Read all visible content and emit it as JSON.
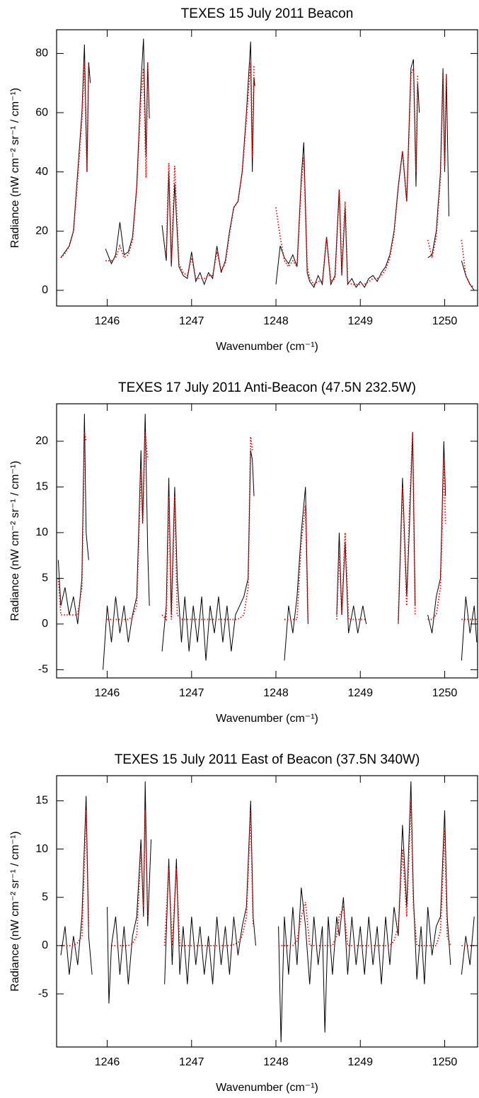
{
  "chart_data": [
    {
      "type": "line",
      "title": "TEXES 15 July 2011 Beacon",
      "x_label": "Wavenumber (cm⁻¹)",
      "y_label": "Radiance (nW cm⁻² sr⁻¹ / cm⁻¹)",
      "xlim": [
        1245.4,
        1250.39
      ],
      "xticks": [
        1246,
        1247,
        1248,
        1249,
        1250
      ],
      "ylim": [
        -5.3,
        88
      ],
      "yticks": [
        0,
        20,
        40,
        60,
        80
      ],
      "x": [
        1245.45,
        1245.5,
        1245.55,
        1245.6,
        1245.65,
        1245.7,
        1245.73,
        1245.76,
        1245.78,
        1245.8,
        1245.9,
        1245.98,
        1246.05,
        1246.1,
        1246.15,
        1246.2,
        1246.25,
        1246.3,
        1246.35,
        1246.4,
        1246.43,
        1246.46,
        1246.48,
        1246.5,
        1246.58,
        1246.65,
        1246.7,
        1246.73,
        1246.76,
        1246.8,
        1246.85,
        1246.9,
        1246.95,
        1247.0,
        1247.05,
        1247.1,
        1247.15,
        1247.2,
        1247.25,
        1247.3,
        1247.35,
        1247.4,
        1247.45,
        1247.5,
        1247.55,
        1247.6,
        1247.65,
        1247.7,
        1247.72,
        1247.74,
        1247.75,
        1247.9,
        1248.0,
        1248.05,
        1248.1,
        1248.15,
        1248.2,
        1248.25,
        1248.3,
        1248.33,
        1248.37,
        1248.4,
        1248.45,
        1248.5,
        1248.55,
        1248.6,
        1248.65,
        1248.7,
        1248.75,
        1248.78,
        1248.82,
        1248.85,
        1248.9,
        1248.95,
        1249.0,
        1249.05,
        1249.1,
        1249.15,
        1249.2,
        1249.25,
        1249.3,
        1249.35,
        1249.4,
        1249.45,
        1249.5,
        1249.55,
        1249.6,
        1249.63,
        1249.66,
        1249.68,
        1249.7,
        1249.75,
        1249.8,
        1249.85,
        1249.9,
        1249.95,
        1249.98,
        1250.0,
        1250.02,
        1250.05,
        1250.12,
        1250.2,
        1250.25,
        1250.3,
        1250.35
      ],
      "series": [
        {
          "color": "#000000",
          "dash": false,
          "values": [
            11,
            13,
            15,
            20,
            40,
            60,
            83,
            40,
            77,
            70,
            null,
            14,
            9,
            12,
            23,
            12,
            13,
            18,
            35,
            70,
            85,
            45,
            77,
            58,
            null,
            22,
            10,
            40,
            8,
            36,
            8,
            5,
            4,
            13,
            3,
            6,
            2,
            6,
            4,
            15,
            6,
            10,
            20,
            28,
            30,
            40,
            60,
            84,
            40,
            72,
            69,
            null,
            2,
            15,
            11,
            9,
            12,
            8,
            38,
            50,
            6,
            3,
            1,
            5,
            2,
            18,
            2,
            5,
            34,
            5,
            28,
            2,
            4,
            1,
            3,
            1,
            4,
            5,
            3,
            6,
            8,
            12,
            20,
            35,
            47,
            30,
            75,
            78,
            35,
            70,
            60,
            null,
            11,
            12,
            20,
            40,
            75,
            40,
            73,
            25,
            null,
            10,
            5,
            2,
            0
          ]
        },
        {
          "color": "#ff0000",
          "dash": true,
          "values": [
            11,
            12.5,
            15,
            20,
            38,
            58,
            77,
            40,
            77,
            null,
            null,
            10,
            10,
            11,
            15,
            11,
            12,
            17,
            35,
            65,
            75,
            38,
            77,
            null,
            null,
            null,
            12,
            43,
            10,
            42,
            9,
            6,
            5,
            11,
            4,
            4,
            4,
            5,
            5,
            13,
            7,
            9,
            19,
            28,
            30,
            40,
            58,
            77,
            45,
            76,
            null,
            null,
            28,
            18,
            10,
            8,
            10,
            8,
            36,
            45,
            8,
            4,
            2,
            3,
            3,
            18,
            3,
            4,
            34,
            6,
            30,
            3,
            2,
            2,
            2,
            2,
            3,
            4,
            4,
            5,
            7,
            11,
            19,
            35,
            47,
            30,
            73,
            75,
            40,
            73,
            null,
            null,
            17,
            11,
            18,
            38,
            73,
            42,
            73,
            null,
            null,
            17,
            5,
            2,
            1
          ]
        }
      ]
    },
    {
      "type": "line",
      "title": "TEXES 17 July 2011 Anti-Beacon (47.5N 232.5W)",
      "x_label": "Wavenumber (cm⁻¹)",
      "y_label": "Radiance (nW cm⁻² sr⁻¹ / cm⁻¹)",
      "xlim": [
        1245.4,
        1250.39
      ],
      "xticks": [
        1246,
        1247,
        1248,
        1249,
        1250
      ],
      "ylim": [
        -5.9,
        24.1
      ],
      "yticks": [
        -5,
        0,
        5,
        10,
        15,
        20
      ],
      "x": [
        1245.42,
        1245.45,
        1245.5,
        1245.55,
        1245.6,
        1245.65,
        1245.7,
        1245.73,
        1245.75,
        1245.78,
        1245.87,
        1245.95,
        1246.0,
        1246.05,
        1246.1,
        1246.15,
        1246.2,
        1246.25,
        1246.3,
        1246.35,
        1246.4,
        1246.42,
        1246.45,
        1246.48,
        1246.5,
        1246.58,
        1246.65,
        1246.7,
        1246.73,
        1246.76,
        1246.8,
        1246.83,
        1246.88,
        1246.92,
        1246.97,
        1247.02,
        1247.07,
        1247.12,
        1247.17,
        1247.22,
        1247.27,
        1247.32,
        1247.37,
        1247.42,
        1247.47,
        1247.52,
        1247.57,
        1247.62,
        1247.67,
        1247.7,
        1247.72,
        1247.74,
        1247.9,
        1248.1,
        1248.15,
        1248.2,
        1248.25,
        1248.3,
        1248.35,
        1248.38,
        1248.55,
        1248.72,
        1248.75,
        1248.78,
        1248.82,
        1248.86,
        1248.92,
        1248.97,
        1249.03,
        1249.07,
        1249.3,
        1249.45,
        1249.5,
        1249.55,
        1249.58,
        1249.62,
        1249.65,
        1249.72,
        1249.8,
        1249.85,
        1249.9,
        1249.95,
        1249.99,
        1250.01,
        1250.1,
        1250.2,
        1250.25,
        1250.3,
        1250.35,
        1250.38
      ],
      "series": [
        {
          "color": "#000000",
          "dash": false,
          "values": [
            7,
            2,
            4,
            1,
            3,
            0,
            5,
            23,
            10,
            7,
            null,
            -5,
            2,
            -2,
            3,
            -1,
            2,
            -2,
            1,
            3,
            19,
            11,
            23,
            8,
            2,
            null,
            -3,
            2,
            16,
            1,
            15,
            5,
            -2,
            3,
            -3,
            2,
            -2,
            3,
            -4,
            2,
            -1,
            3,
            -2,
            2,
            -3,
            1,
            2,
            3,
            5,
            19,
            18,
            14,
            null,
            -4,
            2,
            -1,
            3,
            10,
            15,
            0,
            null,
            1,
            10,
            1,
            9,
            -1,
            2,
            -1,
            2,
            0,
            null,
            0,
            16,
            3,
            10,
            21,
            2,
            null,
            1,
            -1,
            3,
            5,
            20,
            14,
            null,
            -4,
            3,
            -1,
            2,
            -2
          ]
        },
        {
          "color": "#ff0000",
          "dash": true,
          "values": [
            5,
            1,
            1,
            1,
            1,
            1,
            4,
            21,
            20,
            null,
            null,
            null,
            0.5,
            0.5,
            0.5,
            0.5,
            0.5,
            0.5,
            0.8,
            2,
            17,
            11,
            21,
            18,
            null,
            null,
            1,
            0.5,
            14,
            0.5,
            14,
            1,
            0.5,
            0.5,
            0.5,
            0.5,
            0.5,
            0.5,
            0.5,
            0.5,
            0.5,
            0.5,
            0.5,
            0.5,
            0.5,
            0.5,
            0.6,
            1,
            4,
            20.5,
            19,
            null,
            null,
            0.5,
            0.5,
            0.5,
            0.5,
            9,
            13,
            0.5,
            null,
            0.5,
            8,
            1,
            10,
            0.5,
            0.5,
            0.5,
            0.5,
            0.5,
            null,
            0.5,
            15,
            2,
            12,
            21,
            1,
            null,
            0.5,
            0.5,
            1,
            4,
            18,
            11,
            null,
            0.5,
            0.5,
            0.5,
            0.5,
            0.5
          ]
        }
      ]
    },
    {
      "type": "line",
      "title": "TEXES 15 July 2011 East of Beacon (37.5N 340W)",
      "x_label": "Wavenumber (cm⁻¹)",
      "y_label": "Radiance (nW cm⁻² sr⁻¹ / cm⁻¹)",
      "xlim": [
        1245.4,
        1250.39
      ],
      "xticks": [
        1246,
        1247,
        1248,
        1249,
        1250
      ],
      "ylim": [
        -10.5,
        17.6
      ],
      "yticks": [
        -5,
        0,
        5,
        10,
        15
      ],
      "x": [
        1245.45,
        1245.5,
        1245.55,
        1245.6,
        1245.65,
        1245.7,
        1245.75,
        1245.78,
        1245.82,
        1245.9,
        1246.0,
        1246.02,
        1246.05,
        1246.1,
        1246.15,
        1246.2,
        1246.25,
        1246.3,
        1246.35,
        1246.4,
        1246.43,
        1246.45,
        1246.48,
        1246.52,
        1246.6,
        1246.68,
        1246.73,
        1246.77,
        1246.82,
        1246.86,
        1246.9,
        1246.95,
        1247.0,
        1247.05,
        1247.1,
        1247.15,
        1247.2,
        1247.25,
        1247.3,
        1247.35,
        1247.4,
        1247.45,
        1247.5,
        1247.55,
        1247.6,
        1247.65,
        1247.7,
        1247.73,
        1247.76,
        1247.9,
        1248.03,
        1248.06,
        1248.1,
        1248.15,
        1248.2,
        1248.25,
        1248.3,
        1248.35,
        1248.4,
        1248.45,
        1248.5,
        1248.55,
        1248.58,
        1248.62,
        1248.67,
        1248.72,
        1248.75,
        1248.8,
        1248.85,
        1248.9,
        1248.95,
        1249.0,
        1249.05,
        1249.1,
        1249.15,
        1249.2,
        1249.25,
        1249.3,
        1249.35,
        1249.4,
        1249.45,
        1249.5,
        1249.55,
        1249.6,
        1249.63,
        1249.67,
        1249.72,
        1249.76,
        1249.8,
        1249.85,
        1249.9,
        1249.95,
        1250.0,
        1250.03,
        1250.07,
        1250.15,
        1250.2,
        1250.25,
        1250.3,
        1250.35
      ],
      "series": [
        {
          "color": "#000000",
          "dash": false,
          "values": [
            -1,
            2,
            -3,
            1,
            -2,
            3,
            15.5,
            1,
            -3,
            null,
            4,
            -6,
            0,
            3,
            -3,
            2,
            -4,
            1,
            3,
            11,
            3,
            17,
            2,
            11,
            null,
            -4,
            9,
            -2,
            9,
            -3,
            2,
            -4,
            3,
            -2,
            2,
            -3,
            1,
            -4,
            3,
            -2,
            2,
            -3,
            3,
            -1,
            2,
            4,
            15,
            3,
            0,
            null,
            2,
            -10,
            3,
            -3,
            4,
            -2,
            6,
            2,
            -4,
            3,
            -2,
            2,
            -9,
            3,
            -3,
            3,
            1,
            5,
            -3,
            3,
            -2,
            2,
            -3,
            3,
            -2,
            2,
            -4,
            3,
            -2,
            4,
            1,
            12.5,
            4,
            17,
            5,
            -3.5,
            2,
            -4,
            4,
            -1,
            2,
            3,
            14,
            3,
            -2,
            null,
            -3,
            1,
            -2,
            3
          ]
        },
        {
          "color": "#ff0000",
          "dash": true,
          "values": [
            0,
            0,
            0,
            0,
            0.3,
            1,
            14,
            2,
            null,
            null,
            null,
            null,
            0,
            0,
            0,
            0,
            0,
            0.2,
            1,
            10,
            4,
            14,
            3,
            null,
            null,
            0,
            8,
            0,
            8,
            0,
            0,
            0,
            0,
            0,
            0,
            0,
            0,
            0,
            0,
            0,
            0,
            0,
            0.1,
            0.3,
            1,
            3,
            14,
            2,
            null,
            null,
            0,
            0,
            0,
            0,
            0,
            0.5,
            3,
            4.5,
            0,
            0,
            0,
            0,
            0,
            0,
            0,
            1,
            3,
            4,
            0,
            0,
            0,
            0,
            0,
            0,
            0,
            0,
            0,
            0,
            0,
            0.5,
            2,
            10,
            3,
            15,
            4,
            0,
            0,
            0,
            0,
            0,
            0,
            1.5,
            12,
            1,
            0,
            null,
            0,
            0,
            0,
            0
          ]
        }
      ]
    }
  ]
}
